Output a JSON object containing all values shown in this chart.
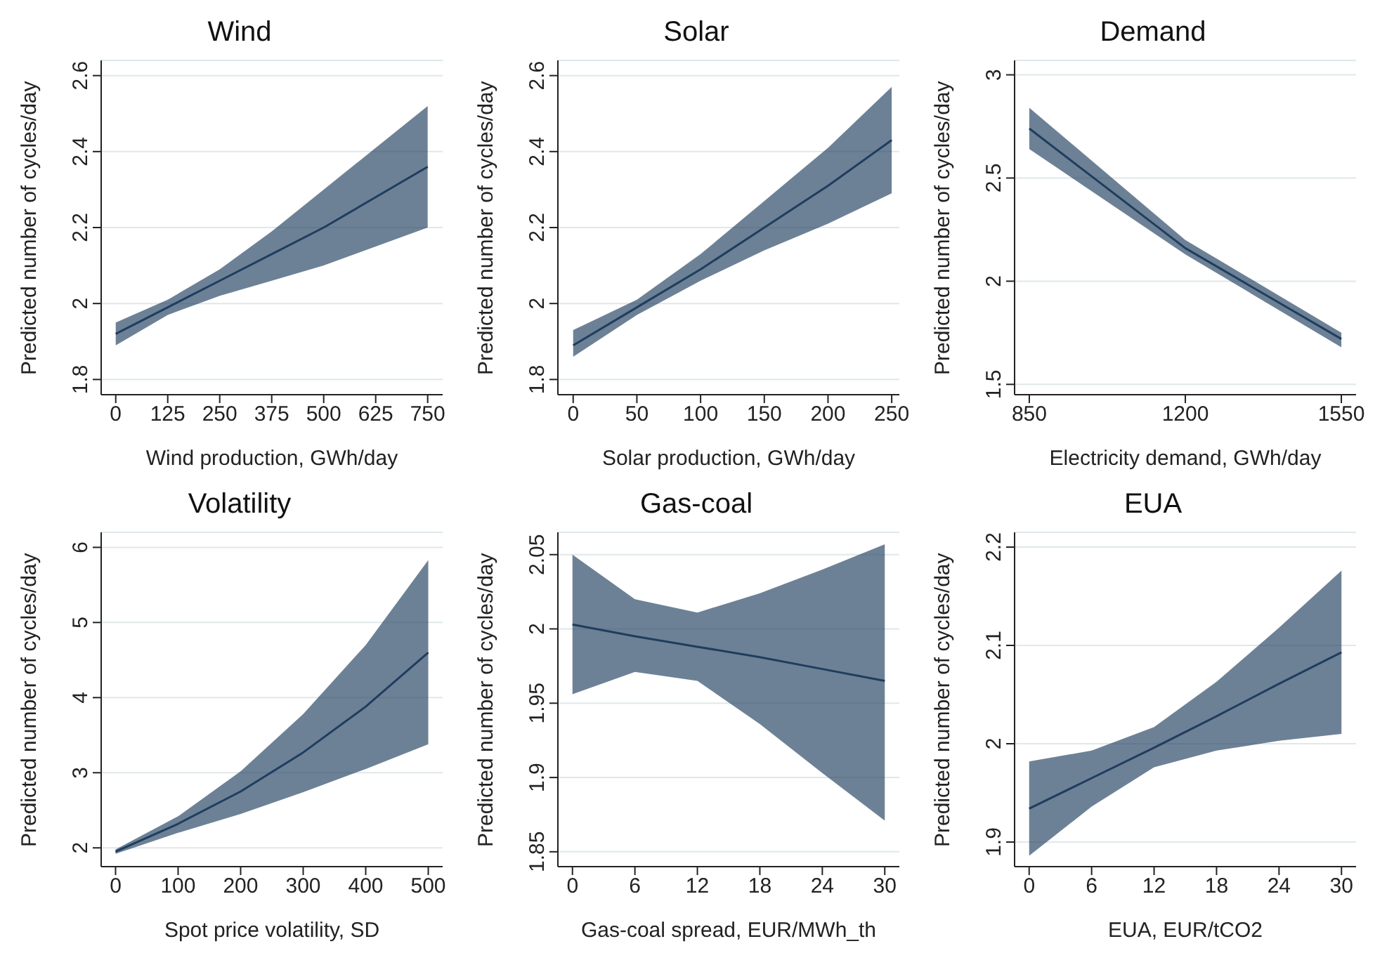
{
  "chart_data": [
    {
      "type": "line",
      "title": "Wind",
      "xlabel": "Wind production, GWh/day",
      "ylabel": "Predicted number of cycles/day",
      "x": [
        0,
        125,
        250,
        375,
        500,
        625,
        750
      ],
      "xlim": [
        -35,
        786
      ],
      "xticks": [
        0,
        125,
        250,
        375,
        500,
        625,
        750
      ],
      "ylim": [
        1.76,
        2.64
      ],
      "yticks": [
        1.8,
        2,
        2.2,
        2.4,
        2.6
      ],
      "grid": "y",
      "marker": "none",
      "series": [
        {
          "color": "#1f3d5e",
          "values": [
            1.92,
            1.99,
            2.06,
            2.13,
            2.2,
            2.28,
            2.36
          ],
          "lower": [
            1.89,
            1.97,
            2.02,
            2.06,
            2.1,
            2.15,
            2.2
          ],
          "upper": [
            1.95,
            2.01,
            2.09,
            2.19,
            2.3,
            2.41,
            2.52
          ]
        }
      ]
    },
    {
      "type": "line",
      "title": "Solar",
      "xlabel": "Solar production, GWh/day",
      "ylabel": "Predicted number of cycles/day",
      "x": [
        0,
        50,
        100,
        150,
        200,
        250
      ],
      "xlim": [
        -12,
        256
      ],
      "xticks": [
        0,
        50,
        100,
        150,
        200,
        250
      ],
      "ylim": [
        1.76,
        2.64
      ],
      "yticks": [
        1.8,
        2,
        2.2,
        2.4,
        2.6
      ],
      "grid": "y",
      "marker": "none",
      "series": [
        {
          "color": "#1f3d5e",
          "values": [
            1.89,
            1.99,
            2.09,
            2.2,
            2.31,
            2.43
          ],
          "lower": [
            1.86,
            1.97,
            2.06,
            2.14,
            2.21,
            2.29
          ],
          "upper": [
            1.93,
            2.01,
            2.13,
            2.27,
            2.41,
            2.57
          ]
        }
      ]
    },
    {
      "type": "line",
      "title": "Demand",
      "xlabel": "Electricity demand, GWh/day",
      "ylabel": "Predicted number of cycles/day",
      "x": [
        850,
        1200,
        1550
      ],
      "xlim": [
        817,
        1583
      ],
      "xticks": [
        850,
        1200,
        1550
      ],
      "ylim": [
        1.45,
        3.07
      ],
      "yticks": [
        1.5,
        2,
        2.5,
        3
      ],
      "grid": "y",
      "marker": "none",
      "series": [
        {
          "color": "#1f3d5e",
          "values": [
            2.74,
            2.16,
            1.72
          ],
          "lower": [
            2.64,
            2.13,
            1.68
          ],
          "upper": [
            2.84,
            2.2,
            1.75
          ]
        }
      ]
    },
    {
      "type": "line",
      "title": "Volatility",
      "xlabel": "Spot price volatility, SD",
      "ylabel": "Predicted number of cycles/day",
      "x": [
        0,
        100,
        200,
        300,
        400,
        500
      ],
      "xlim": [
        -23,
        523
      ],
      "xticks": [
        0,
        100,
        200,
        300,
        400,
        500
      ],
      "ylim": [
        1.75,
        6.2
      ],
      "yticks": [
        2,
        3,
        4,
        5,
        6
      ],
      "grid": "y",
      "marker": "none",
      "series": [
        {
          "color": "#1f3d5e",
          "values": [
            1.95,
            2.32,
            2.75,
            3.27,
            3.88,
            4.6
          ],
          "lower": [
            1.92,
            2.2,
            2.45,
            2.74,
            3.05,
            3.38
          ],
          "upper": [
            1.98,
            2.42,
            3.02,
            3.78,
            4.7,
            5.83
          ]
        }
      ]
    },
    {
      "type": "line",
      "title": "Gas-coal",
      "xlabel": "Gas-coal spread, EUR/MWh_th",
      "ylabel": "Predicted number of cycles/day",
      "x": [
        0,
        6,
        12,
        18,
        24,
        30
      ],
      "xlim": [
        -1.4,
        31.4
      ],
      "xticks": [
        0,
        6,
        12,
        18,
        24,
        30
      ],
      "ylim": [
        1.84,
        2.065
      ],
      "yticks": [
        1.85,
        1.9,
        1.95,
        2,
        2.05
      ],
      "grid": "y",
      "marker": "none",
      "series": [
        {
          "color": "#1f3d5e",
          "values": [
            2.003,
            1.995,
            1.988,
            1.981,
            1.973,
            1.965
          ],
          "lower": [
            1.956,
            1.971,
            1.965,
            1.936,
            1.903,
            1.871
          ],
          "upper": [
            2.05,
            2.02,
            2.011,
            2.024,
            2.04,
            2.057
          ]
        }
      ]
    },
    {
      "type": "line",
      "title": "EUA",
      "xlabel": "EUA, EUR/tCO2",
      "ylabel": "Predicted number of cycles/day",
      "x": [
        0,
        6,
        12,
        18,
        24,
        30
      ],
      "xlim": [
        -1.4,
        31.4
      ],
      "xticks": [
        0,
        6,
        12,
        18,
        24,
        30
      ],
      "ylim": [
        1.875,
        2.215
      ],
      "yticks": [
        1.9,
        2,
        2.1,
        2.2
      ],
      "grid": "y",
      "marker": "none",
      "series": [
        {
          "color": "#1f3d5e",
          "values": [
            1.934,
            1.965,
            1.996,
            2.028,
            2.061,
            2.093
          ],
          "lower": [
            1.886,
            1.936,
            1.976,
            1.993,
            2.003,
            2.01
          ],
          "upper": [
            1.982,
            1.993,
            2.017,
            2.063,
            2.118,
            2.176
          ]
        }
      ]
    }
  ]
}
